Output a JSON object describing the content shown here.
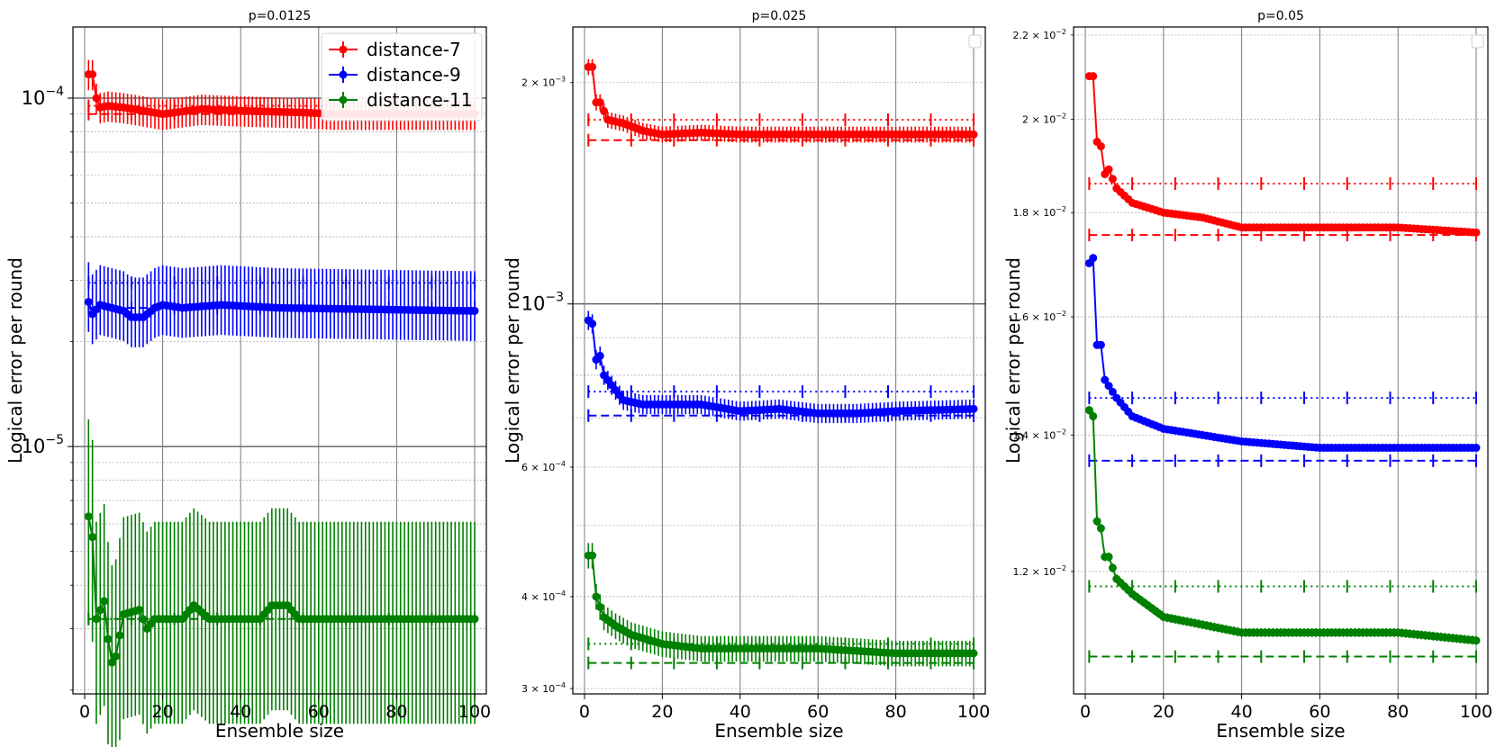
{
  "colors": {
    "distance-7": "#ff0000",
    "distance-9": "#0000ff",
    "distance-11": "#008000"
  },
  "shared": {
    "xlabel": "Ensemble size",
    "ylabel": "Logical error per round"
  },
  "legend_labels": [
    "distance-7",
    "distance-9",
    "distance-11"
  ],
  "chart_data": [
    {
      "type": "line",
      "title": "p=0.0125",
      "xlabel": "Ensemble size",
      "ylabel": "Logical error per round",
      "xlim": [
        -3,
        103
      ],
      "ylim": [
        1.95e-06,
        0.00016
      ],
      "yscale": "log",
      "xticks": [
        0,
        20,
        40,
        60,
        80,
        100
      ],
      "yticks_major": [
        {
          "value": 0.0001,
          "base": "10",
          "exp": "−4"
        },
        {
          "value": 1e-05,
          "base": "10",
          "exp": "−5"
        }
      ],
      "yticks_minor": [
        2e-06,
        3e-06,
        4e-06,
        5e-06,
        6e-06,
        7e-06,
        8e-06,
        9e-06,
        2e-05,
        3e-05,
        4e-05,
        5e-05,
        6e-05,
        7e-05,
        8e-05,
        9e-05
      ],
      "legend": "upper-right",
      "series": [
        {
          "name": "distance-7",
          "anchors": [
            [
              1,
              0.000117
            ],
            [
              2,
              0.000117
            ],
            [
              3,
              0.0001
            ],
            [
              4,
              9.4e-05
            ],
            [
              6,
              9.5e-05
            ],
            [
              10,
              9.4e-05
            ],
            [
              15,
              9.2e-05
            ],
            [
              20,
              9e-05
            ],
            [
              30,
              9.3e-05
            ],
            [
              40,
              9.2e-05
            ],
            [
              55,
              9.1e-05
            ],
            [
              65,
              9e-05
            ],
            [
              80,
              9e-05
            ],
            [
              100,
              9e-05
            ]
          ],
          "err_lo": 0.1,
          "err_hi": 0.1,
          "ref_dotted": 9.5e-05,
          "ref_dashed": 9e-05
        },
        {
          "name": "distance-9",
          "anchors": [
            [
              1,
              2.6e-05
            ],
            [
              2,
              2.4e-05
            ],
            [
              4,
              2.55e-05
            ],
            [
              10,
              2.45e-05
            ],
            [
              12,
              2.35e-05
            ],
            [
              15,
              2.35e-05
            ],
            [
              18,
              2.5e-05
            ],
            [
              20,
              2.55e-05
            ],
            [
              25,
              2.5e-05
            ],
            [
              35,
              2.55e-05
            ],
            [
              50,
              2.5e-05
            ],
            [
              100,
              2.45e-05
            ]
          ],
          "err_lo": 0.18,
          "err_hi": 0.3,
          "ref_dotted": 2.95e-05,
          "ref_dashed": 2.5e-05
        },
        {
          "name": "distance-11",
          "anchors": [
            [
              1,
              6.3e-06
            ],
            [
              2,
              5.5e-06
            ],
            [
              3,
              3.2e-06
            ],
            [
              5,
              3.6e-06
            ],
            [
              6,
              2.8e-06
            ],
            [
              7,
              2.4e-06
            ],
            [
              8,
              2.5e-06
            ],
            [
              10,
              3.3e-06
            ],
            [
              14,
              3.4e-06
            ],
            [
              16,
              3e-06
            ],
            [
              18,
              3.2e-06
            ],
            [
              25,
              3.2e-06
            ],
            [
              28,
              3.5e-06
            ],
            [
              32,
              3.2e-06
            ],
            [
              45,
              3.2e-06
            ],
            [
              48,
              3.5e-06
            ],
            [
              52,
              3.5e-06
            ],
            [
              55,
              3.2e-06
            ],
            [
              100,
              3.2e-06
            ]
          ],
          "err_lo": 0.5,
          "err_hi": 0.9,
          "ref_dotted": 3.2e-06,
          "ref_dashed": 3.2e-06
        }
      ]
    },
    {
      "type": "line",
      "title": "p=0.025",
      "xlabel": "Ensemble size",
      "ylabel": "Logical error per round",
      "xlim": [
        -3,
        103
      ],
      "ylim": [
        0.000295,
        0.00238
      ],
      "yscale": "log",
      "xticks": [
        0,
        20,
        40,
        60,
        80,
        100
      ],
      "yticks_major": [
        {
          "value": 0.001,
          "base": "10",
          "exp": "−3"
        }
      ],
      "yticks_minor": [
        {
          "value": 0.0003,
          "label": "3 × 10",
          "exp": "−4"
        },
        {
          "value": 0.0004,
          "label": "4 × 10",
          "exp": "−4"
        },
        {
          "value": 0.0006,
          "label": "6 × 10",
          "exp": "−4"
        },
        {
          "value": 0.002,
          "label": "2 × 10",
          "exp": "−3"
        }
      ],
      "yticks_minor_unlabeled": [
        0.0005,
        0.0007,
        0.0008,
        0.0009
      ],
      "legend": "upper-right-empty",
      "series": [
        {
          "name": "distance-7",
          "anchors": [
            [
              1,
              0.0021
            ],
            [
              2,
              0.0021
            ],
            [
              3,
              0.00188
            ],
            [
              4,
              0.00188
            ],
            [
              6,
              0.00178
            ],
            [
              10,
              0.00176
            ],
            [
              15,
              0.00172
            ],
            [
              20,
              0.0017
            ],
            [
              30,
              0.00171
            ],
            [
              40,
              0.0017
            ],
            [
              100,
              0.0017
            ]
          ],
          "err_lo": 0.025,
          "err_hi": 0.025,
          "ref_dotted": 0.00178,
          "ref_dashed": 0.00167
        },
        {
          "name": "distance-9",
          "anchors": [
            [
              1,
              0.00095
            ],
            [
              2,
              0.00094
            ],
            [
              3,
              0.00084
            ],
            [
              4,
              0.00085
            ],
            [
              5,
              0.0008
            ],
            [
              10,
              0.00074
            ],
            [
              15,
              0.00073
            ],
            [
              20,
              0.00073
            ],
            [
              30,
              0.00073
            ],
            [
              40,
              0.000715
            ],
            [
              50,
              0.00072
            ],
            [
              60,
              0.00071
            ],
            [
              70,
              0.00071
            ],
            [
              80,
              0.000715
            ],
            [
              100,
              0.00072
            ]
          ],
          "err_lo": 0.03,
          "err_hi": 0.03,
          "ref_dotted": 0.00076,
          "ref_dashed": 0.000705
        },
        {
          "name": "distance-11",
          "anchors": [
            [
              1,
              0.000455
            ],
            [
              2,
              0.000455
            ],
            [
              3,
              0.0004
            ],
            [
              5,
              0.000375
            ],
            [
              8,
              0.000365
            ],
            [
              12,
              0.000355
            ],
            [
              20,
              0.000345
            ],
            [
              30,
              0.00034
            ],
            [
              40,
              0.00034
            ],
            [
              60,
              0.00034
            ],
            [
              80,
              0.000335
            ],
            [
              100,
              0.000335
            ]
          ],
          "err_lo": 0.04,
          "err_hi": 0.04,
          "ref_dotted": 0.000345,
          "ref_dashed": 0.000325
        }
      ]
    },
    {
      "type": "line",
      "title": "p=0.05",
      "xlabel": "Ensemble size",
      "ylabel": "Logical error per round",
      "xlim": [
        -3,
        103
      ],
      "ylim": [
        0.01045,
        0.0222
      ],
      "yscale": "log",
      "xticks": [
        0,
        20,
        40,
        60,
        80,
        100
      ],
      "yticks_major": [],
      "yticks_minor": [
        {
          "value": 0.012,
          "label": "1.2 × 10",
          "exp": "−2"
        },
        {
          "value": 0.014,
          "label": "1.4 × 10",
          "exp": "−2"
        },
        {
          "value": 0.016,
          "label": "1.6 × 10",
          "exp": "−2"
        },
        {
          "value": 0.018,
          "label": "1.8 × 10",
          "exp": "−2"
        },
        {
          "value": 0.02,
          "label": "2 × 10",
          "exp": "−2"
        },
        {
          "value": 0.022,
          "label": "2.2 × 10",
          "exp": "−2"
        }
      ],
      "yticks_minor_unlabeled": [],
      "legend": "upper-right-empty",
      "series": [
        {
          "name": "distance-7",
          "anchors": [
            [
              1,
              0.021
            ],
            [
              2,
              0.021
            ],
            [
              3,
              0.0195
            ],
            [
              4,
              0.0194
            ],
            [
              5,
              0.0188
            ],
            [
              6,
              0.0189
            ],
            [
              8,
              0.0185
            ],
            [
              12,
              0.0182
            ],
            [
              20,
              0.018
            ],
            [
              30,
              0.0179
            ],
            [
              40,
              0.0177
            ],
            [
              60,
              0.0177
            ],
            [
              80,
              0.0177
            ],
            [
              100,
              0.0176
            ]
          ],
          "err_lo": 0.004,
          "err_hi": 0.004,
          "ref_dotted": 0.0186,
          "ref_dashed": 0.01755
        },
        {
          "name": "distance-9",
          "anchors": [
            [
              1,
              0.017
            ],
            [
              2,
              0.0171
            ],
            [
              3,
              0.0155
            ],
            [
              4,
              0.0155
            ],
            [
              5,
              0.0149
            ],
            [
              6,
              0.0148
            ],
            [
              8,
              0.0146
            ],
            [
              12,
              0.0143
            ],
            [
              20,
              0.0141
            ],
            [
              30,
              0.014
            ],
            [
              40,
              0.0139
            ],
            [
              60,
              0.0138
            ],
            [
              80,
              0.0138
            ],
            [
              100,
              0.0138
            ]
          ],
          "err_lo": 0.004,
          "err_hi": 0.004,
          "ref_dotted": 0.0146,
          "ref_dashed": 0.0136
        },
        {
          "name": "distance-11",
          "anchors": [
            [
              1,
              0.0144
            ],
            [
              2,
              0.0143
            ],
            [
              3,
              0.0127
            ],
            [
              4,
              0.0126
            ],
            [
              5,
              0.0122
            ],
            [
              6,
              0.0122
            ],
            [
              8,
              0.0119
            ],
            [
              12,
              0.0117
            ],
            [
              20,
              0.0114
            ],
            [
              30,
              0.0113
            ],
            [
              40,
              0.0112
            ],
            [
              60,
              0.0112
            ],
            [
              80,
              0.0112
            ],
            [
              100,
              0.0111
            ]
          ],
          "err_lo": 0.005,
          "err_hi": 0.005,
          "ref_dotted": 0.0118,
          "ref_dashed": 0.0109
        }
      ]
    }
  ]
}
